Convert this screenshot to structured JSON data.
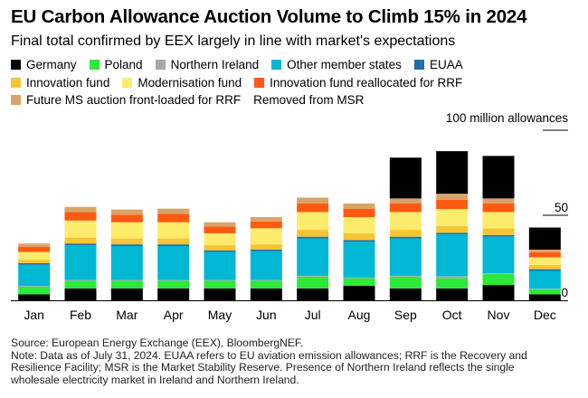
{
  "title": "EU Carbon Allowance Auction Volume to Climb 15% in 2024",
  "subtitle": "Final total confirmed by EEX largely in line with market's expectations",
  "chart_data": {
    "type": "bar",
    "stacked": true,
    "categories": [
      "Jan",
      "Feb",
      "Mar",
      "Apr",
      "May",
      "Jun",
      "Jul",
      "Aug",
      "Sep",
      "Oct",
      "Nov",
      "Dec"
    ],
    "unit_label": "100 million allowances",
    "ylim": [
      0,
      100
    ],
    "yticks": [
      0,
      50,
      100
    ],
    "ytick_labels": [
      "0",
      "50",
      ""
    ],
    "series": [
      {
        "name": "Germany",
        "color": "#000000",
        "values": [
          3.5,
          7,
          7,
          7,
          7,
          7,
          7,
          8.5,
          7,
          7,
          9,
          3.5
        ]
      },
      {
        "name": "Poland",
        "color": "#2ee83a",
        "values": [
          4.5,
          4.5,
          4.5,
          4.5,
          4.5,
          4.5,
          7,
          4.5,
          7,
          6,
          6.5,
          3
        ]
      },
      {
        "name": "Northern Ireland",
        "color": "#a8a8a8",
        "values": [
          0.4,
          0.4,
          0.4,
          0.4,
          0.4,
          0.4,
          0.4,
          0.4,
          0.4,
          1.2,
          0.4,
          0.3
        ]
      },
      {
        "name": "Other member states",
        "color": "#00b8d4",
        "values": [
          12.5,
          20.5,
          20,
          20,
          16.5,
          17,
          22,
          21,
          22,
          24.5,
          21.5,
          10.5
        ]
      },
      {
        "name": "EUAA",
        "color": "#1f6fa8",
        "values": [
          1,
          1,
          1,
          1,
          1,
          1,
          1,
          1,
          1,
          1,
          1,
          1
        ]
      },
      {
        "name": "Innovation fund",
        "color": "#f7c531",
        "values": [
          2,
          3.5,
          3.5,
          3.5,
          3,
          3,
          4,
          4,
          4,
          4,
          4,
          2.5
        ]
      },
      {
        "name": "Modernisation fund",
        "color": "#fdeb6b",
        "values": [
          4.5,
          10,
          9.5,
          9.5,
          7,
          9.5,
          10.5,
          9.5,
          10.5,
          10,
          9.5,
          4.5
        ]
      },
      {
        "name": "Innovation fund reallocated for RRF",
        "color": "#ff5a12",
        "values": [
          3,
          5,
          4.5,
          5,
          4,
          4,
          5,
          5,
          5,
          5.5,
          5,
          3
        ]
      },
      {
        "name": "Future MS auction front-loaded for RRF",
        "color": "#d9a468",
        "values": [
          2,
          3,
          3,
          3,
          2.5,
          2.5,
          3.5,
          3,
          3,
          3.5,
          3,
          1.5
        ]
      },
      {
        "name": "Removed from MSR",
        "color": "#000000",
        "values": [
          0,
          0,
          0,
          0,
          0,
          0,
          0,
          0,
          24,
          25,
          25,
          13
        ]
      }
    ]
  },
  "notes": {
    "source": "Source: European Energy Exchange (EEX), BloombergNEF.",
    "note_lines": [
      "Note: Data as of July 31, 2024. EUAA refers to EU aviation emission allowances; RRF is the Recovery and",
      "Resilience Facility; MSR is the Market Stability Reserve. Presence of Northern Ireland reflects the single",
      "wholesale electricity market in Ireland and Northern Ireland."
    ]
  }
}
